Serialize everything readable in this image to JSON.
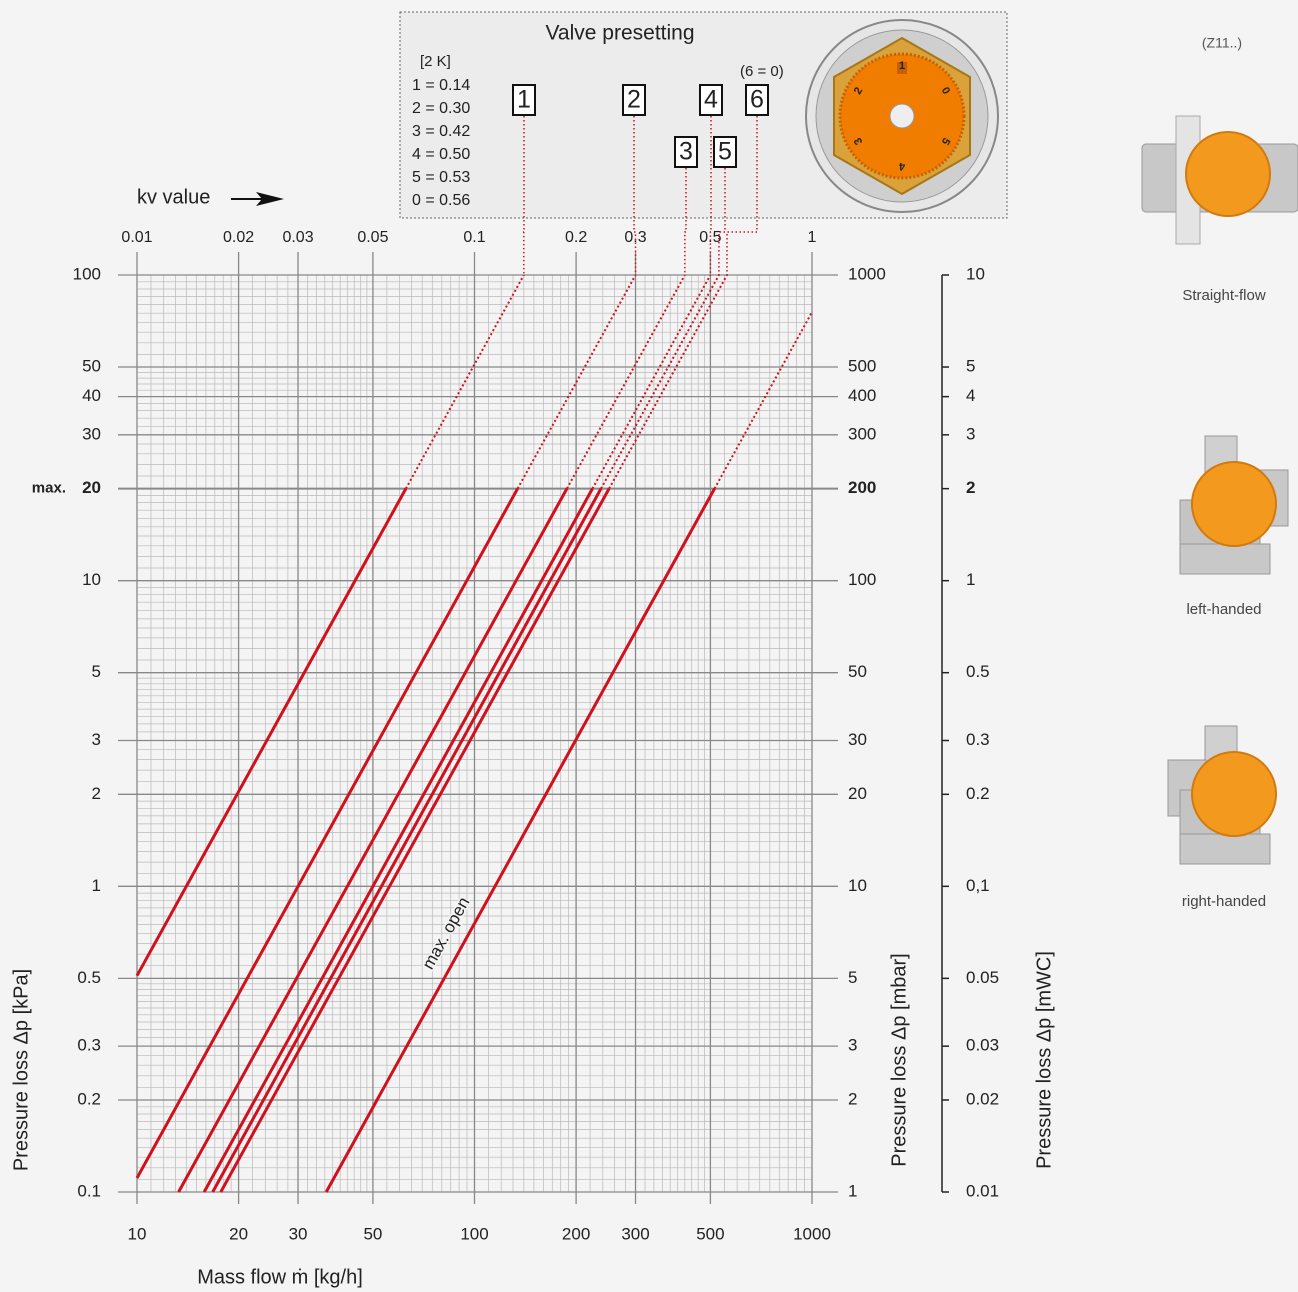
{
  "chart_data": {
    "type": "line",
    "title": "Valve presetting",
    "subtitle": "[2 K]",
    "note": "(6 = 0)",
    "x_label": "Mass flow ṁ [kg/h]",
    "x2_label": "kv value",
    "y_label": "Pressure loss Δp [kPa]",
    "y2_label": "Pressure loss Δp [mbar]",
    "y3_label": "Pressure loss Δp [mWC]",
    "max_label": "max.",
    "xscale": "log",
    "yscale": "log",
    "grid": true,
    "color": "#d0111d",
    "xlim": [
      10,
      1000
    ],
    "xticks": [
      10,
      20,
      30,
      50,
      100,
      200,
      300,
      500,
      1000
    ],
    "x2lim": [
      0.01,
      1
    ],
    "x2ticks": [
      0.01,
      0.02,
      0.03,
      0.05,
      0.1,
      0.2,
      0.3,
      0.5,
      1
    ],
    "ylim": [
      0.1,
      100
    ],
    "yticks": [
      100,
      50,
      40,
      30,
      20,
      10,
      5,
      3,
      2,
      1,
      0.5,
      0.3,
      0.2,
      0.1
    ],
    "y2lim": [
      1,
      1000
    ],
    "y2ticks": [
      1000,
      500,
      400,
      300,
      200,
      100,
      50,
      30,
      20,
      10,
      5,
      3,
      2,
      1
    ],
    "y3lim": [
      0.01,
      10
    ],
    "y3ticks": [
      10,
      5,
      4,
      3,
      2,
      1,
      0.5,
      0.3,
      0.2,
      {
        "value": 0.1,
        "label": "0,1"
      },
      0.05,
      0.03,
      0.02,
      0.01
    ],
    "max_pressure": 20,
    "curves": [
      {
        "name": "1",
        "label": "1 = 0.14",
        "kv": 0.14
      },
      {
        "name": "2",
        "label": "2 = 0.30",
        "kv": 0.3
      },
      {
        "name": "3",
        "label": "3 = 0.42",
        "kv": 0.42
      },
      {
        "name": "4",
        "label": "4 = 0.50",
        "kv": 0.5
      },
      {
        "name": "5",
        "label": "5 = 0.53",
        "kv": 0.53
      },
      {
        "name": "6",
        "label": "0 = 0.56",
        "kv": 0.56
      },
      {
        "name": "max. open",
        "kv": 1.15
      }
    ],
    "dial": [
      "1",
      "0",
      "5",
      "4",
      "3",
      "2"
    ]
  },
  "sidebar": {
    "heading": "(Z11..)",
    "variants": [
      "Straight-flow",
      "left-handed",
      "right-handed"
    ]
  }
}
